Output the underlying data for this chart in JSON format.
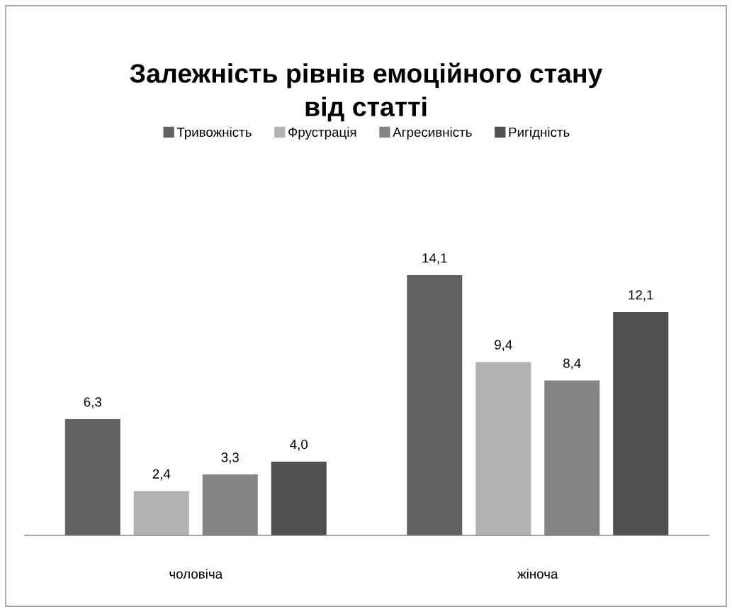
{
  "chart_data": {
    "type": "bar",
    "title": "Залежність рівнів емоційного стану\nвід статті",
    "categories": [
      "чоловіча",
      "жіноча"
    ],
    "series": [
      {
        "name": "Тривожність",
        "color": "#626262",
        "values": [
          6.3,
          14.1
        ],
        "value_labels": [
          "6,3",
          "14,1"
        ]
      },
      {
        "name": "Фрустрація",
        "color": "#b2b2b2",
        "values": [
          2.4,
          9.4
        ],
        "value_labels": [
          "2,4",
          "9,4"
        ]
      },
      {
        "name": "Агресивність",
        "color": "#848484",
        "values": [
          3.3,
          8.4
        ],
        "value_labels": [
          "3,3",
          "8,4"
        ]
      },
      {
        "name": "Ригідність",
        "color": "#505050",
        "values": [
          4.0,
          12.1
        ],
        "value_labels": [
          "4,0",
          "12,1"
        ]
      }
    ],
    "legend": "top",
    "grid": false,
    "tick_labels": "x"
  }
}
